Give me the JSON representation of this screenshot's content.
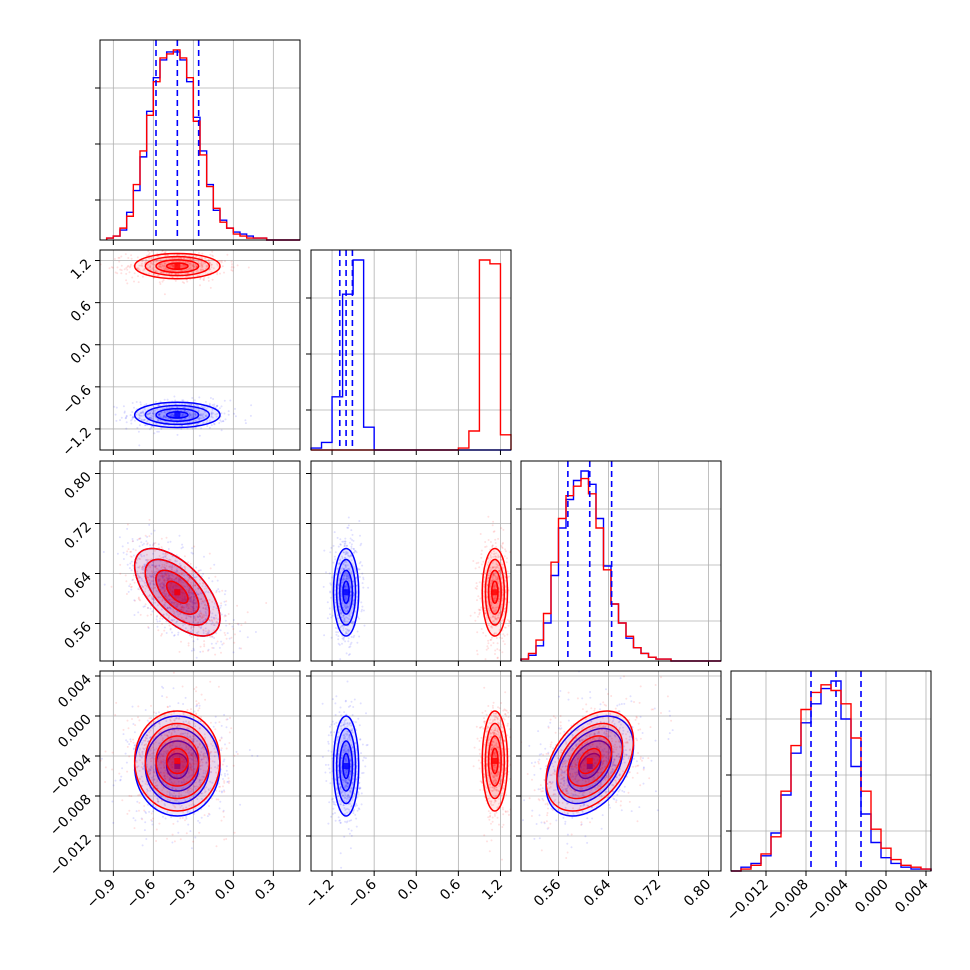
{
  "chart_data": {
    "type": "corner",
    "title": "",
    "grid": true,
    "colors": {
      "series_a": "#0000ff",
      "series_b": "#ff0000",
      "grid": "#b0b0b0",
      "frame": "#000000"
    },
    "series": [
      {
        "color": "#0000ff",
        "means": [
          -0.42,
          -1.0,
          0.61,
          -0.005
        ],
        "sds": [
          0.16,
          0.09,
          0.035,
          0.0025
        ],
        "quantiles_drawn": true
      },
      {
        "color": "#ff0000",
        "means": [
          -0.42,
          1.12,
          0.61,
          -0.0045
        ],
        "sds": [
          0.16,
          0.09,
          0.035,
          0.0025
        ],
        "quantiles_drawn": false
      }
    ],
    "correlations": {
      "p0_p2": -0.6,
      "p2_p3": 0.4,
      "p0_p3": 0.0
    },
    "params": [
      {
        "range": [
          -1.0,
          0.5
        ],
        "ticks": [
          -0.9,
          -0.6,
          -0.3,
          0.0,
          0.3
        ],
        "tick_labels": [
          "−0.9",
          "−0.6",
          "−0.3",
          "0.0",
          "0.3"
        ]
      },
      {
        "range": [
          -1.5,
          1.35
        ],
        "ticks": [
          -1.2,
          -0.6,
          0.0,
          0.6,
          1.2
        ],
        "tick_labels": [
          "−1.2",
          "−0.6",
          "0.0",
          "0.6",
          "1.2"
        ]
      },
      {
        "range": [
          0.5,
          0.82
        ],
        "ticks": [
          0.56,
          0.64,
          0.72,
          0.8
        ],
        "tick_labels": [
          "0.56",
          "0.64",
          "0.72",
          "0.80"
        ]
      },
      {
        "range": [
          -0.0155,
          0.0045
        ],
        "ticks": [
          -0.012,
          -0.008,
          -0.004,
          0.0,
          0.004
        ],
        "tick_labels": [
          "−0.012",
          "−0.008",
          "−0.004",
          "0.000",
          "0.004"
        ]
      }
    ],
    "quantile_lines": {
      "color": "#0000ff",
      "p0": [
        -0.58,
        -0.42,
        -0.26
      ],
      "p1": [
        -1.09,
        -1.0,
        -0.91
      ],
      "p2": [
        0.575,
        0.61,
        0.645
      ],
      "p3": [
        -0.0075,
        -0.005,
        -0.0025
      ]
    },
    "histograms": {
      "p0": {
        "bins": [
          -0.95,
          -0.9,
          -0.85,
          -0.8,
          -0.75,
          -0.7,
          -0.65,
          -0.6,
          -0.55,
          -0.5,
          -0.45,
          -0.4,
          -0.35,
          -0.3,
          -0.25,
          -0.2,
          -0.15,
          -0.1,
          -0.05,
          0.0,
          0.05,
          0.1,
          0.15,
          0.2,
          0.25,
          0.3,
          0.35,
          0.4,
          0.45,
          0.5
        ],
        "blue": [
          1,
          2,
          5,
          14,
          25,
          42,
          65,
          82,
          91,
          95,
          95,
          91,
          80,
          62,
          45,
          28,
          15,
          10,
          6,
          4,
          3,
          2,
          1,
          1,
          0,
          0,
          0,
          0,
          0
        ],
        "red": [
          1,
          2,
          6,
          12,
          28,
          45,
          63,
          80,
          92,
          94,
          96,
          92,
          82,
          60,
          43,
          27,
          16,
          9,
          6,
          3,
          2,
          1,
          1,
          1,
          0,
          0,
          0,
          0,
          0
        ]
      },
      "p1": {
        "bins": [
          -1.5,
          -1.35,
          -1.2,
          -1.05,
          -0.9,
          -0.75,
          -0.6,
          -0.45,
          -0.3,
          -0.15,
          0.0,
          0.15,
          0.3,
          0.45,
          0.6,
          0.75,
          0.9,
          1.05,
          1.2,
          1.35
        ],
        "blue": [
          1,
          4,
          28,
          82,
          100,
          12,
          0,
          0,
          0,
          0,
          0,
          0,
          0,
          0,
          0,
          0,
          0,
          0,
          0
        ],
        "red": [
          0,
          0,
          0,
          0,
          0,
          0,
          0,
          0,
          0,
          0,
          0,
          0,
          0,
          0,
          1,
          10,
          100,
          98,
          8
        ]
      },
      "p2": {
        "bins": [
          0.5,
          0.512,
          0.524,
          0.536,
          0.548,
          0.56,
          0.572,
          0.584,
          0.596,
          0.608,
          0.62,
          0.632,
          0.644,
          0.656,
          0.668,
          0.68,
          0.692,
          0.704,
          0.716,
          0.728,
          0.74,
          0.752,
          0.764,
          0.776,
          0.788,
          0.8,
          0.812,
          0.82
        ],
        "blue": [
          1,
          3,
          8,
          20,
          45,
          70,
          85,
          95,
          100,
          93,
          75,
          50,
          30,
          20,
          12,
          7,
          4,
          2,
          1,
          1,
          0,
          0,
          0,
          0,
          0,
          0,
          0
        ],
        "red": [
          1,
          4,
          11,
          25,
          52,
          75,
          87,
          92,
          96,
          88,
          70,
          48,
          30,
          20,
          13,
          7,
          4,
          2,
          1,
          1,
          0,
          0,
          0,
          0,
          0,
          0,
          0
        ]
      },
      "p3": {
        "bins": [
          -0.0155,
          -0.0145,
          -0.0135,
          -0.0125,
          -0.0115,
          -0.0105,
          -0.0095,
          -0.0085,
          -0.0075,
          -0.0065,
          -0.0055,
          -0.0045,
          -0.0035,
          -0.0025,
          -0.0015,
          -0.0005,
          0.0005,
          0.0015,
          0.0025,
          0.0035,
          0.0045
        ],
        "blue": [
          0,
          2,
          4,
          8,
          20,
          40,
          62,
          78,
          88,
          96,
          100,
          80,
          55,
          30,
          15,
          7,
          4,
          2,
          1,
          1
        ],
        "red": [
          0,
          1,
          3,
          9,
          18,
          42,
          66,
          85,
          94,
          98,
          95,
          88,
          70,
          42,
          22,
          12,
          6,
          3,
          2,
          1
        ]
      }
    }
  }
}
